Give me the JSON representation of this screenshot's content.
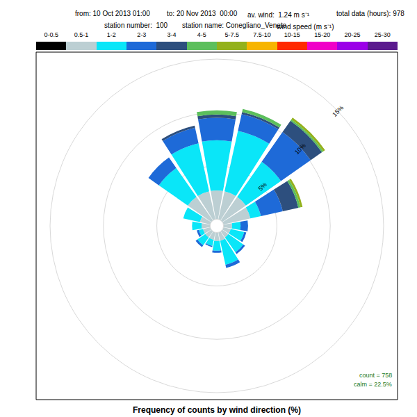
{
  "chart_data": {
    "type": "windrose",
    "title": "Frequency of counts by wind direction (%)",
    "subtitle": [
      "from: 10 Oct 2013 01:00",
      "to: 20 Nov 2013  00:00",
      "av. wind:  1.24 m s⁻¹",
      "total data (hours): 978",
      "station number:  100",
      "station name: Conegliano_Veneto",
      "wind speed (m s⁻¹)"
    ],
    "annotations": [
      "count = 758",
      "calm = 22.5%"
    ],
    "x": [
      0,
      22.5,
      45,
      67.5,
      90,
      112.5,
      135,
      157.5,
      180,
      202.5,
      225,
      247.5,
      270,
      292.5,
      315,
      337.5
    ],
    "xlim": [
      0,
      360
    ],
    "ylim": [
      0,
      15
    ],
    "yticks": [
      {
        "value": 5,
        "label": "5%"
      },
      {
        "value": 10,
        "label": "10%"
      },
      {
        "value": 15,
        "label": "15%"
      }
    ],
    "grid": true,
    "stacked": true,
    "tick_labels": "y",
    "series": [
      {
        "name": "0-0.5",
        "color": "#000000",
        "values": [
          0,
          0,
          0,
          0,
          0,
          0,
          0,
          0,
          0,
          0,
          0,
          0,
          0,
          0,
          0,
          0
        ]
      },
      {
        "name": "0.5-1",
        "color": "#bccfd3",
        "values": [
          2.7,
          2.7,
          2.7,
          2.6,
          0.8,
          0.7,
          0.7,
          0.8,
          0.8,
          0.7,
          0.7,
          0.7,
          0.8,
          1.0,
          2.7,
          2.7
        ]
      },
      {
        "name": "1-2",
        "color": "#0ae6f8",
        "values": [
          4.7,
          5.8,
          4.0,
          1.0,
          0.8,
          1.3,
          1.7,
          2.3,
          0.9,
          0.6,
          0.9,
          0.4,
          0.9,
          1.6,
          3.3,
          4.6
        ]
      },
      {
        "name": "2-3",
        "color": "#1e6ad8",
        "values": [
          2.1,
          1.6,
          3.4,
          2.1,
          0.7,
          0.2,
          0.2,
          0.3,
          0.2,
          0.1,
          0.2,
          0.2,
          0,
          0,
          1.2,
          1.5
        ]
      },
      {
        "name": "3-4",
        "color": "#2d4f7e",
        "values": [
          0.3,
          0.2,
          1.3,
          1.5,
          0,
          0,
          0,
          0,
          0,
          0,
          0,
          0,
          0,
          0,
          0,
          0.2
        ]
      },
      {
        "name": "4-5",
        "color": "#5cbf5c",
        "values": [
          0.4,
          0.3,
          0.15,
          0.2,
          0,
          0,
          0,
          0,
          0,
          0,
          0,
          0,
          0,
          0,
          0,
          0
        ]
      },
      {
        "name": "5-7.5",
        "color": "#93b11c",
        "values": [
          0,
          0,
          0.2,
          0.2,
          0,
          0,
          0,
          0,
          0,
          0,
          0,
          0,
          0,
          0,
          0,
          0
        ]
      },
      {
        "name": "7.5-10",
        "color": "#f7b500",
        "values": [
          0,
          0,
          0,
          0,
          0,
          0,
          0,
          0,
          0,
          0,
          0,
          0,
          0,
          0,
          0,
          0
        ]
      },
      {
        "name": "10-15",
        "color": "#ff2a00",
        "values": [
          0,
          0,
          0,
          0,
          0,
          0,
          0,
          0,
          0,
          0,
          0,
          0,
          0,
          0,
          0,
          0
        ]
      },
      {
        "name": "15-20",
        "color": "#f000c8",
        "values": [
          0,
          0,
          0,
          0,
          0,
          0,
          0,
          0,
          0,
          0,
          0,
          0,
          0,
          0,
          0,
          0
        ]
      },
      {
        "name": "20-25",
        "color": "#9b00e8",
        "values": [
          0,
          0,
          0,
          0,
          0,
          0,
          0,
          0,
          0,
          0,
          0,
          0,
          0,
          0,
          0,
          0
        ]
      },
      {
        "name": "25-30",
        "color": "#5b1a8e",
        "values": [
          0,
          0,
          0,
          0,
          0,
          0,
          0,
          0,
          0,
          0,
          0,
          0,
          0,
          0,
          0,
          0
        ]
      }
    ]
  }
}
